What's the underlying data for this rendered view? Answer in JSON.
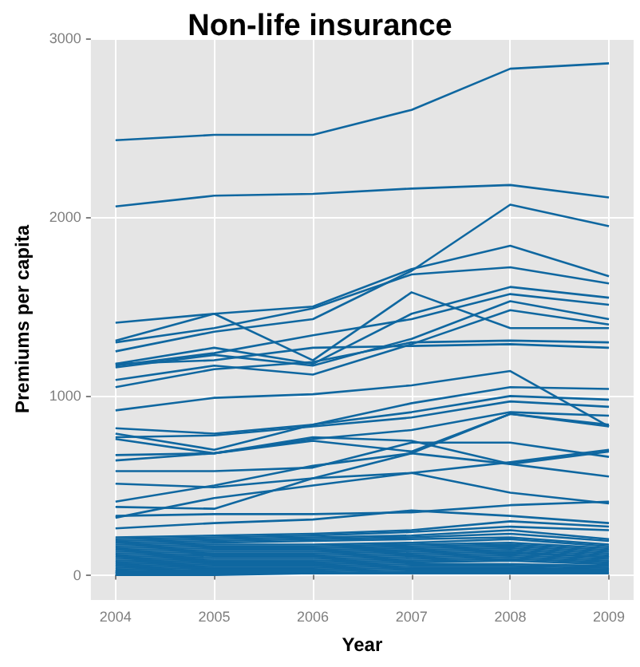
{
  "chart_data": {
    "type": "line",
    "title": "Non-life insurance",
    "xlabel": "Year",
    "ylabel": "Premiums per capita",
    "x": [
      2004,
      2005,
      2006,
      2007,
      2008,
      2009
    ],
    "xlim": [
      2003.75,
      2009.25
    ],
    "xticks": [
      2004,
      2005,
      2006,
      2007,
      2008,
      2009
    ],
    "ylim": [
      -140,
      3000
    ],
    "yticks": [
      0,
      1000,
      2000,
      3000
    ],
    "grid": true,
    "marker": "none",
    "line_style": "solid",
    "series": [
      {
        "color": "#0f67a0",
        "values": [
          2430,
          2460,
          2460,
          2600,
          2830,
          2860
        ]
      },
      {
        "color": "#0f67a0",
        "values": [
          2060,
          2120,
          2130,
          2160,
          2180,
          2110
        ]
      },
      {
        "color": "#0f67a0",
        "values": [
          1410,
          1460,
          1500,
          1710,
          1840,
          1670
        ]
      },
      {
        "color": "#0f67a0",
        "values": [
          1300,
          1380,
          1490,
          1680,
          1720,
          1630
        ]
      },
      {
        "color": "#0f67a0",
        "values": [
          1310,
          1460,
          1200,
          1580,
          1380,
          1380
        ]
      },
      {
        "color": "#0f67a0",
        "values": [
          1250,
          1360,
          1430,
          1700,
          2070,
          1950
        ]
      },
      {
        "color": "#0f67a0",
        "values": [
          1180,
          1270,
          1180,
          1460,
          1610,
          1550
        ]
      },
      {
        "color": "#0f67a0",
        "values": [
          1170,
          1240,
          1340,
          1430,
          1570,
          1510
        ]
      },
      {
        "color": "#0f67a0",
        "values": [
          1160,
          1230,
          1170,
          1320,
          1530,
          1430
        ]
      },
      {
        "color": "#0f67a0",
        "values": [
          1090,
          1170,
          1120,
          1290,
          1480,
          1400
        ]
      },
      {
        "color": "#0f67a0",
        "values": [
          1050,
          1150,
          1190,
          1300,
          1310,
          1300
        ]
      },
      {
        "color": "#0f67a0",
        "values": [
          1180,
          1200,
          1270,
          1280,
          1290,
          1270
        ]
      },
      {
        "color": "#0f67a0",
        "values": [
          920,
          990,
          1010,
          1060,
          1140,
          830
        ]
      },
      {
        "color": "#0f67a0",
        "values": [
          820,
          790,
          840,
          960,
          1050,
          1040
        ]
      },
      {
        "color": "#0f67a0",
        "values": [
          790,
          700,
          840,
          910,
          1000,
          980
        ]
      },
      {
        "color": "#0f67a0",
        "values": [
          770,
          780,
          830,
          880,
          970,
          940
        ]
      },
      {
        "color": "#0f67a0",
        "values": [
          760,
          680,
          760,
          810,
          910,
          890
        ]
      },
      {
        "color": "#0f67a0",
        "values": [
          670,
          680,
          750,
          690,
          900,
          840
        ]
      },
      {
        "color": "#0f67a0",
        "values": [
          640,
          680,
          770,
          750,
          620,
          550
        ]
      },
      {
        "color": "#0f67a0",
        "values": [
          580,
          580,
          600,
          740,
          740,
          660
        ]
      },
      {
        "color": "#0f67a0",
        "values": [
          510,
          490,
          540,
          570,
          630,
          700
        ]
      },
      {
        "color": "#0f67a0",
        "values": [
          410,
          500,
          610,
          680,
          620,
          690
        ]
      },
      {
        "color": "#0f67a0",
        "values": [
          380,
          370,
          540,
          680,
          900,
          830
        ]
      },
      {
        "color": "#0f67a0",
        "values": [
          320,
          430,
          500,
          570,
          460,
          400
        ]
      },
      {
        "color": "#0f67a0",
        "values": [
          330,
          340,
          340,
          350,
          390,
          410
        ]
      },
      {
        "color": "#0f67a0",
        "values": [
          260,
          290,
          310,
          360,
          330,
          290
        ]
      },
      {
        "color": "#0f67a0",
        "values": [
          210,
          220,
          230,
          250,
          300,
          270
        ]
      },
      {
        "color": "#0f67a0",
        "values": [
          200,
          210,
          220,
          240,
          270,
          250
        ]
      },
      {
        "color": "#0f67a0",
        "values": [
          190,
          200,
          210,
          220,
          250,
          200
        ]
      },
      {
        "color": "#0f67a0",
        "values": [
          180,
          190,
          200,
          210,
          230,
          190
        ]
      },
      {
        "color": "#0f67a0",
        "values": [
          170,
          180,
          190,
          200,
          210,
          170
        ]
      },
      {
        "color": "#0f67a0",
        "values": [
          160,
          170,
          170,
          180,
          200,
          160
        ]
      },
      {
        "color": "#0f67a0",
        "values": [
          150,
          160,
          160,
          170,
          180,
          150
        ]
      },
      {
        "color": "#0f67a0",
        "values": [
          140,
          150,
          150,
          160,
          170,
          140
        ]
      },
      {
        "color": "#0f67a0",
        "values": [
          130,
          140,
          140,
          150,
          160,
          130
        ]
      },
      {
        "color": "#0f67a0",
        "values": [
          120,
          130,
          130,
          140,
          150,
          120
        ]
      },
      {
        "color": "#0f67a0",
        "values": [
          110,
          120,
          120,
          130,
          140,
          110
        ]
      },
      {
        "color": "#0f67a0",
        "values": [
          100,
          110,
          110,
          120,
          130,
          100
        ]
      },
      {
        "color": "#0f67a0",
        "values": [
          90,
          100,
          100,
          110,
          120,
          100
        ]
      },
      {
        "color": "#0f67a0",
        "values": [
          80,
          90,
          90,
          100,
          110,
          90
        ]
      },
      {
        "color": "#0f67a0",
        "values": [
          70,
          80,
          80,
          90,
          100,
          80
        ]
      },
      {
        "color": "#0f67a0",
        "values": [
          60,
          70,
          70,
          80,
          90,
          70
        ]
      },
      {
        "color": "#0f67a0",
        "values": [
          50,
          60,
          60,
          70,
          80,
          60
        ]
      },
      {
        "color": "#0f67a0",
        "values": [
          40,
          50,
          50,
          60,
          60,
          50
        ]
      },
      {
        "color": "#0f67a0",
        "values": [
          30,
          40,
          40,
          50,
          50,
          40
        ]
      },
      {
        "color": "#0f67a0",
        "values": [
          20,
          30,
          30,
          40,
          40,
          30
        ]
      },
      {
        "color": "#0f67a0",
        "values": [
          20,
          20,
          20,
          30,
          30,
          30
        ]
      },
      {
        "color": "#0f67a0",
        "values": [
          10,
          10,
          10,
          20,
          20,
          20
        ]
      },
      {
        "color": "#0f67a0",
        "values": [
          10,
          10,
          10,
          10,
          10,
          10
        ]
      },
      {
        "color": "#0f67a0",
        "values": [
          0,
          0,
          10,
          10,
          10,
          10
        ]
      }
    ]
  }
}
